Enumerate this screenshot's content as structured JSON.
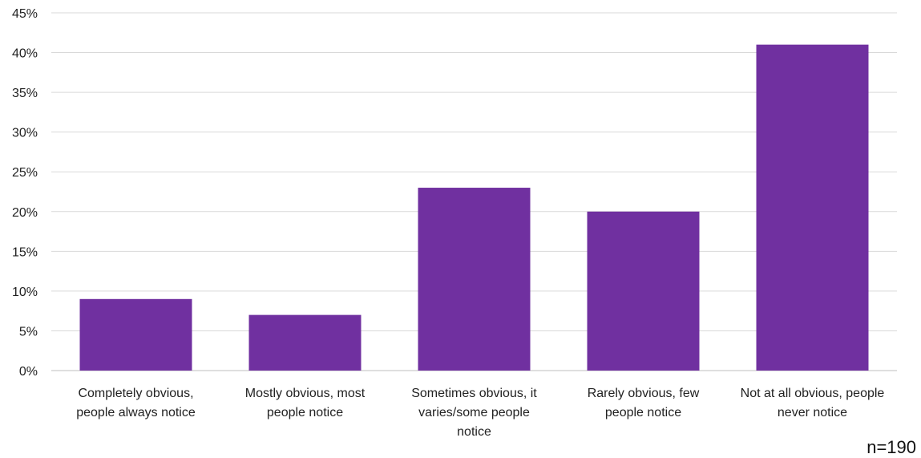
{
  "chart_data": {
    "type": "bar",
    "categories": [
      [
        "Completely obvious,",
        "people always notice"
      ],
      [
        "Mostly obvious, most",
        "people notice"
      ],
      [
        "Sometimes obvious, it",
        "varies/some people",
        "notice"
      ],
      [
        "Rarely obvious, few",
        "people notice"
      ],
      [
        "Not at all obvious, people",
        "never notice"
      ]
    ],
    "values": [
      9,
      7,
      23,
      20,
      41
    ],
    "ylim": [
      0,
      45
    ],
    "yticks": [
      0,
      5,
      10,
      15,
      20,
      25,
      30,
      35,
      40,
      45
    ],
    "ytick_format": "percent",
    "grid": true,
    "bar_color": "#7030A0",
    "grid_color": "#d9d9d9"
  },
  "note": "n=190"
}
